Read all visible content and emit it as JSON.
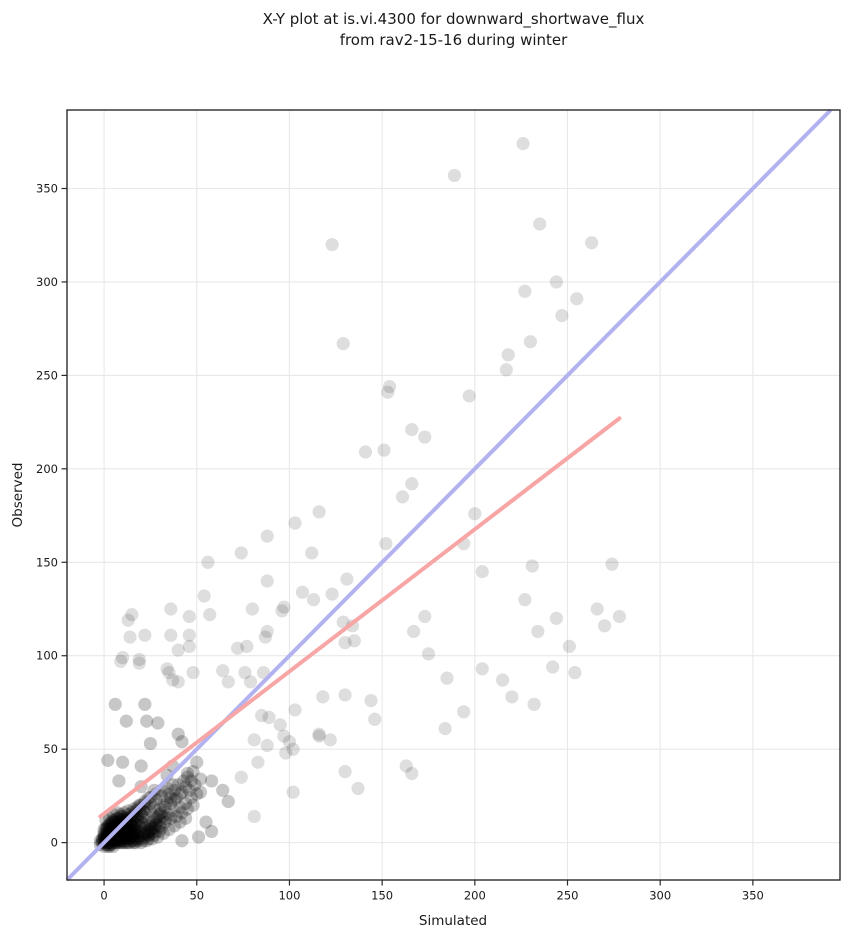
{
  "chart_data": {
    "type": "scatter",
    "title_line1": "X-Y plot at is.vi.4300 for downward_shortwave_flux",
    "title_line2": "from rav2-15-16 during winter",
    "xlabel": "Simulated",
    "ylabel": "Observed",
    "xlim": [
      -20,
      397
    ],
    "ylim": [
      -20,
      392
    ],
    "xticks": [
      0,
      50,
      100,
      150,
      200,
      250,
      300,
      350
    ],
    "yticks": [
      0,
      50,
      100,
      150,
      200,
      250,
      300,
      350
    ],
    "grid": true,
    "grid_color": "#e8e8e8",
    "spine_color": "#2b2b2b",
    "tick_color": "#1a1a1a",
    "marker": {
      "radius": 6.6,
      "color": "#000000",
      "alpha_outer": 0.13,
      "alpha_cluster": 0.22
    },
    "identity_line": {
      "x1": -20,
      "y1": -20,
      "x2": 392,
      "y2": 392,
      "color": "#b2b2f0",
      "width": 4
    },
    "fit_line": {
      "x1": -2,
      "y1": 14,
      "x2": 278,
      "y2": 227,
      "color": "#f8a5a5",
      "width": 4
    },
    "points": [
      [
        226,
        374
      ],
      [
        189,
        357
      ],
      [
        235,
        331
      ],
      [
        263,
        321
      ],
      [
        123,
        320
      ],
      [
        244,
        300
      ],
      [
        227,
        295
      ],
      [
        255,
        291
      ],
      [
        247,
        282
      ],
      [
        230,
        268
      ],
      [
        129,
        267
      ],
      [
        218,
        261
      ],
      [
        217,
        253
      ],
      [
        154,
        244
      ],
      [
        153,
        241
      ],
      [
        197,
        239
      ],
      [
        166,
        221
      ],
      [
        173,
        217
      ],
      [
        141,
        209
      ],
      [
        151,
        210
      ],
      [
        166,
        192
      ],
      [
        161,
        185
      ],
      [
        116,
        177
      ],
      [
        200,
        176
      ],
      [
        112,
        155
      ],
      [
        152,
        160
      ],
      [
        194,
        160
      ],
      [
        204,
        145
      ],
      [
        231,
        148
      ],
      [
        274,
        149
      ],
      [
        131,
        141
      ],
      [
        123,
        133
      ],
      [
        113,
        130
      ],
      [
        227,
        130
      ],
      [
        266,
        125
      ],
      [
        173,
        121
      ],
      [
        278,
        121
      ],
      [
        244,
        120
      ],
      [
        129,
        118
      ],
      [
        134,
        116
      ],
      [
        270,
        116
      ],
      [
        167,
        113
      ],
      [
        234,
        113
      ],
      [
        135,
        108
      ],
      [
        130,
        107
      ],
      [
        251,
        105
      ],
      [
        175,
        101
      ],
      [
        204,
        93
      ],
      [
        103,
        171
      ],
      [
        88,
        164
      ],
      [
        74,
        155
      ],
      [
        56,
        150
      ],
      [
        107,
        134
      ],
      [
        54,
        132
      ],
      [
        15,
        122
      ],
      [
        13,
        119
      ],
      [
        36,
        125
      ],
      [
        46,
        121
      ],
      [
        57,
        122
      ],
      [
        80,
        125
      ],
      [
        96,
        124
      ],
      [
        97,
        126
      ],
      [
        88,
        140
      ],
      [
        14,
        110
      ],
      [
        22,
        111
      ],
      [
        36,
        111
      ],
      [
        46,
        111
      ],
      [
        46,
        105
      ],
      [
        40,
        103
      ],
      [
        87,
        110
      ],
      [
        88,
        113
      ],
      [
        72,
        104
      ],
      [
        77,
        105
      ],
      [
        10,
        99
      ],
      [
        19,
        98
      ],
      [
        9,
        97
      ],
      [
        19,
        96
      ],
      [
        34,
        93
      ],
      [
        35,
        91
      ],
      [
        48,
        91
      ],
      [
        64,
        92
      ],
      [
        76,
        91
      ],
      [
        86,
        91
      ],
      [
        67,
        86
      ],
      [
        79,
        86
      ],
      [
        37,
        87
      ],
      [
        40,
        86
      ],
      [
        185,
        88
      ],
      [
        215,
        87
      ],
      [
        242,
        94
      ],
      [
        254,
        91
      ],
      [
        118,
        78
      ],
      [
        130,
        79
      ],
      [
        144,
        76
      ],
      [
        220,
        78
      ],
      [
        232,
        74
      ],
      [
        194,
        70
      ],
      [
        146,
        66
      ],
      [
        184,
        61
      ],
      [
        116,
        57
      ],
      [
        122,
        55
      ],
      [
        130,
        38
      ],
      [
        163,
        41
      ],
      [
        166,
        37
      ],
      [
        137,
        29
      ],
      [
        103,
        71
      ],
      [
        95,
        63
      ],
      [
        85,
        68
      ],
      [
        89,
        67
      ],
      [
        97,
        57
      ],
      [
        100,
        54
      ],
      [
        102,
        50
      ],
      [
        81,
        55
      ],
      [
        88,
        52
      ],
      [
        98,
        48
      ],
      [
        83,
        43
      ],
      [
        102,
        27
      ],
      [
        81,
        14
      ],
      [
        74,
        35
      ],
      [
        116,
        58
      ]
    ],
    "cluster_points": [
      [
        6,
        74
      ],
      [
        22,
        74
      ],
      [
        12,
        65
      ],
      [
        23,
        65
      ],
      [
        29,
        64
      ],
      [
        40,
        58
      ],
      [
        42,
        54
      ],
      [
        25,
        53
      ],
      [
        2,
        44
      ],
      [
        10,
        43
      ],
      [
        20,
        41
      ],
      [
        37,
        41
      ],
      [
        45,
        37
      ],
      [
        34,
        36
      ],
      [
        8,
        33
      ],
      [
        20,
        30
      ],
      [
        27,
        28
      ],
      [
        42,
        27
      ],
      [
        52,
        27
      ],
      [
        58,
        33
      ],
      [
        64,
        28
      ],
      [
        58,
        6
      ],
      [
        51,
        3
      ],
      [
        31,
        8
      ],
      [
        24,
        4
      ],
      [
        42,
        1
      ],
      [
        55,
        11
      ],
      [
        67,
        22
      ],
      [
        2,
        1
      ],
      [
        3,
        2
      ],
      [
        4,
        1
      ],
      [
        5,
        3
      ],
      [
        6,
        2
      ],
      [
        7,
        4
      ],
      [
        8,
        3
      ],
      [
        3,
        0
      ],
      [
        4,
        2
      ],
      [
        5,
        1
      ],
      [
        6,
        4
      ],
      [
        7,
        2
      ],
      [
        8,
        5
      ],
      [
        9,
        4
      ],
      [
        2,
        3
      ],
      [
        1,
        1
      ],
      [
        0,
        0
      ],
      [
        1,
        2
      ],
      [
        2,
        0
      ],
      [
        3,
        3
      ],
      [
        4,
        4
      ],
      [
        5,
        5
      ],
      [
        6,
        1
      ],
      [
        7,
        0
      ],
      [
        8,
        1
      ],
      [
        9,
        2
      ],
      [
        10,
        3
      ],
      [
        10,
        6
      ],
      [
        11,
        4
      ],
      [
        12,
        5
      ],
      [
        0,
        2
      ],
      [
        -1,
        0
      ],
      [
        -2,
        -1
      ],
      [
        0,
        -2
      ],
      [
        1,
        -1
      ],
      [
        2,
        -2
      ],
      [
        3,
        -1
      ],
      [
        4,
        0
      ],
      [
        5,
        -2
      ],
      [
        6,
        0
      ],
      [
        7,
        6
      ],
      [
        8,
        7
      ],
      [
        9,
        6
      ],
      [
        10,
        8
      ],
      [
        11,
        7
      ],
      [
        12,
        9
      ],
      [
        13,
        8
      ],
      [
        14,
        10
      ],
      [
        5,
        7
      ],
      [
        6,
        8
      ],
      [
        7,
        9
      ],
      [
        4,
        6
      ],
      [
        3,
        5
      ],
      [
        2,
        6
      ],
      [
        1,
        4
      ],
      [
        0,
        5
      ],
      [
        1,
        7
      ],
      [
        2,
        8
      ],
      [
        3,
        9
      ],
      [
        4,
        10
      ],
      [
        5,
        11
      ],
      [
        6,
        12
      ],
      [
        7,
        13
      ],
      [
        8,
        11
      ],
      [
        9,
        12
      ],
      [
        10,
        14
      ],
      [
        11,
        12
      ],
      [
        12,
        13
      ],
      [
        13,
        15
      ],
      [
        14,
        13
      ],
      [
        15,
        14
      ],
      [
        9,
        0
      ],
      [
        10,
        1
      ],
      [
        11,
        2
      ],
      [
        12,
        1
      ],
      [
        13,
        3
      ],
      [
        14,
        2
      ],
      [
        15,
        4
      ],
      [
        16,
        3
      ],
      [
        17,
        5
      ],
      [
        18,
        4
      ],
      [
        6,
        6
      ],
      [
        7,
        7
      ],
      [
        8,
        8
      ],
      [
        9,
        9
      ],
      [
        10,
        10
      ],
      [
        11,
        11
      ],
      [
        12,
        12
      ],
      [
        2,
        4
      ],
      [
        3,
        6
      ],
      [
        4,
        8
      ],
      [
        5,
        9
      ],
      [
        0,
        3
      ],
      [
        -1,
        2
      ],
      [
        -2,
        1
      ],
      [
        14,
        6
      ],
      [
        15,
        8
      ],
      [
        13,
        5
      ],
      [
        12,
        3
      ],
      [
        11,
        0
      ],
      [
        13,
        0
      ],
      [
        15,
        1
      ],
      [
        17,
        2
      ],
      [
        5,
        0
      ],
      [
        4,
        -1
      ],
      [
        3,
        -2
      ],
      [
        2,
        -1
      ],
      [
        1,
        0
      ],
      [
        0,
        1
      ],
      [
        6,
        3
      ],
      [
        7,
        1
      ],
      [
        8,
        0
      ],
      [
        9,
        1
      ],
      [
        16,
        6
      ],
      [
        8,
        2
      ],
      [
        9,
        3
      ],
      [
        10,
        4
      ],
      [
        11,
        5
      ],
      [
        12,
        6
      ],
      [
        13,
        7
      ],
      [
        14,
        8
      ],
      [
        15,
        9
      ],
      [
        7,
        5
      ],
      [
        6,
        5
      ],
      [
        5,
        6
      ],
      [
        4,
        5
      ],
      [
        3,
        4
      ],
      [
        2,
        5
      ],
      [
        1,
        3
      ],
      [
        0,
        4
      ],
      [
        -1,
        1
      ],
      [
        12,
        10
      ],
      [
        11,
        9
      ],
      [
        10,
        7
      ],
      [
        9,
        8
      ],
      [
        8,
        9
      ],
      [
        7,
        10
      ],
      [
        6,
        11
      ],
      [
        5,
        12
      ],
      [
        4,
        11
      ],
      [
        3,
        10
      ],
      [
        2,
        9
      ],
      [
        1,
        8
      ],
      [
        0,
        7
      ],
      [
        10,
        0
      ],
      [
        12,
        0
      ],
      [
        14,
        0
      ],
      [
        16,
        0
      ],
      [
        18,
        1
      ],
      [
        5,
        2
      ],
      [
        4,
        3
      ],
      [
        3,
        7
      ],
      [
        2,
        7
      ],
      [
        6,
        7
      ],
      [
        7,
        8
      ],
      [
        8,
        6
      ],
      [
        9,
        5
      ],
      [
        11,
        3
      ],
      [
        13,
        2
      ],
      [
        15,
        3
      ],
      [
        16,
        5
      ],
      [
        17,
        7
      ],
      [
        18,
        6
      ],
      [
        16,
        8
      ],
      [
        17,
        10
      ],
      [
        18,
        12
      ],
      [
        19,
        9
      ],
      [
        20,
        11
      ],
      [
        19,
        6
      ],
      [
        20,
        8
      ],
      [
        21,
        10
      ],
      [
        16,
        15
      ],
      [
        18,
        14
      ],
      [
        20,
        15
      ],
      [
        22,
        16
      ],
      [
        19,
        13
      ],
      [
        21,
        14
      ],
      [
        14,
        11
      ],
      [
        15,
        12
      ],
      [
        16,
        13
      ],
      [
        17,
        14
      ],
      [
        13,
        11
      ],
      [
        12,
        8
      ],
      [
        11,
        13
      ],
      [
        10,
        12
      ],
      [
        9,
        14
      ],
      [
        8,
        13
      ],
      [
        20,
        2
      ],
      [
        22,
        3
      ],
      [
        24,
        4
      ],
      [
        26,
        5
      ],
      [
        28,
        6
      ],
      [
        21,
        4
      ],
      [
        23,
        5
      ],
      [
        25,
        6
      ],
      [
        27,
        8
      ],
      [
        22,
        8
      ],
      [
        24,
        6
      ],
      [
        24,
        9
      ],
      [
        26,
        8
      ],
      [
        26,
        11
      ],
      [
        28,
        10
      ],
      [
        28,
        13
      ],
      [
        30,
        12
      ],
      [
        30,
        15
      ],
      [
        32,
        14
      ],
      [
        25,
        17
      ],
      [
        27,
        19
      ],
      [
        23,
        18
      ],
      [
        21,
        17
      ],
      [
        19,
        18
      ],
      [
        17,
        17
      ],
      [
        15,
        16
      ],
      [
        13,
        17
      ],
      [
        11,
        16
      ],
      [
        9,
        15
      ],
      [
        7,
        16
      ],
      [
        5,
        15
      ],
      [
        3,
        13
      ],
      [
        1,
        12
      ],
      [
        30,
        18
      ],
      [
        32,
        20
      ],
      [
        34,
        22
      ],
      [
        36,
        24
      ],
      [
        25,
        21
      ],
      [
        28,
        23
      ],
      [
        31,
        25
      ],
      [
        20,
        20
      ],
      [
        22,
        22
      ],
      [
        24,
        24
      ],
      [
        18,
        19
      ],
      [
        16,
        18
      ],
      [
        35,
        26
      ],
      [
        38,
        28
      ],
      [
        33,
        19
      ],
      [
        36,
        21
      ],
      [
        39,
        24
      ],
      [
        40,
        31
      ],
      [
        43,
        33
      ],
      [
        37,
        31
      ],
      [
        34,
        29
      ],
      [
        31,
        28
      ],
      [
        28,
        26
      ],
      [
        25,
        24
      ],
      [
        22,
        21
      ],
      [
        19,
        20
      ],
      [
        45,
        35
      ],
      [
        48,
        38
      ],
      [
        44,
        30
      ],
      [
        47,
        33
      ],
      [
        41,
        26
      ],
      [
        38,
        23
      ],
      [
        50,
        43
      ],
      [
        46,
        28
      ],
      [
        49,
        31
      ],
      [
        52,
        34
      ],
      [
        35,
        15
      ],
      [
        38,
        17
      ],
      [
        41,
        19
      ],
      [
        44,
        21
      ],
      [
        47,
        24
      ],
      [
        50,
        26
      ],
      [
        30,
        9
      ],
      [
        33,
        11
      ],
      [
        36,
        13
      ],
      [
        39,
        14
      ],
      [
        42,
        16
      ],
      [
        45,
        18
      ],
      [
        48,
        20
      ],
      [
        29,
        3
      ],
      [
        32,
        5
      ],
      [
        35,
        7
      ],
      [
        38,
        9
      ],
      [
        41,
        11
      ],
      [
        44,
        13
      ],
      [
        26,
        2
      ],
      [
        23,
        1
      ],
      [
        20,
        0
      ],
      [
        17,
        0
      ],
      [
        25,
        10
      ],
      [
        27,
        12
      ],
      [
        29,
        14
      ],
      [
        31,
        16
      ],
      [
        33,
        13
      ],
      [
        30,
        6
      ],
      [
        27,
        4
      ],
      [
        24,
        2
      ],
      [
        21,
        1
      ],
      [
        18,
        2
      ],
      [
        15,
        6
      ],
      [
        16,
        1
      ],
      [
        19,
        3
      ],
      [
        22,
        5
      ],
      [
        25,
        7
      ],
      [
        28,
        9
      ]
    ]
  }
}
